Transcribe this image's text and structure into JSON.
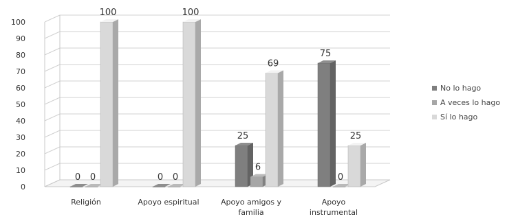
{
  "chart_data": {
    "type": "bar",
    "categories": [
      [
        "Religión"
      ],
      [
        "Apoyo espiritual"
      ],
      [
        "Apoyo amigos y",
        "familia"
      ],
      [
        "Apoyo",
        "instrumental"
      ]
    ],
    "series": [
      {
        "name": "No lo hago",
        "values": [
          0,
          0,
          25,
          75
        ],
        "color": "#7f7f7f"
      },
      {
        "name": "A veces lo hago",
        "values": [
          0,
          0,
          6,
          0
        ],
        "color": "#a6a6a6"
      },
      {
        "name": "Sí lo hago",
        "values": [
          100,
          100,
          69,
          25
        ],
        "color": "#d9d9d9"
      }
    ],
    "ylim": [
      0,
      100
    ],
    "yticks": [
      0,
      10,
      20,
      30,
      40,
      50,
      60,
      70,
      80,
      90,
      100
    ],
    "grid": true,
    "legend_position": "right",
    "title": "",
    "xlabel": "",
    "ylabel": ""
  }
}
